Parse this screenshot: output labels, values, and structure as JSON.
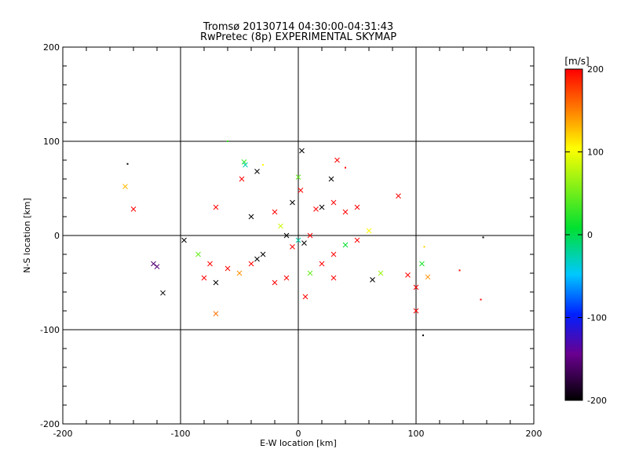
{
  "chart_data": {
    "type": "scatter",
    "title": "Tromsø 20130714 04:30:00-04:31:43",
    "subtitle": "RwPretec (8p) EXPERIMENTAL SKYMAP",
    "xlabel": "E-W location [km]",
    "ylabel": "N-S location [km]",
    "xlim": [
      -200,
      200
    ],
    "ylim": [
      -200,
      200
    ],
    "xticks": [
      "-200",
      "-100",
      "0",
      "100",
      "200"
    ],
    "yticks": [
      "-200",
      "-100",
      "0",
      "100",
      "200"
    ],
    "grid": true,
    "colorbar": {
      "label": "[m/s]",
      "range": [
        -200,
        200
      ],
      "ticks": [
        "200",
        "100",
        "0",
        "-100",
        "-200"
      ],
      "colors": [
        "#000000",
        "#6a0090",
        "#0020ff",
        "#00c8ff",
        "#00e030",
        "#ffff00",
        "#ff9000",
        "#ff0000"
      ],
      "placement": "right"
    },
    "series": [
      {
        "values": [
          {
            "x": 3,
            "y": 90,
            "v": -200,
            "s": "x"
          },
          {
            "x": -35,
            "y": 68,
            "v": -200,
            "s": "x"
          },
          {
            "x": 28,
            "y": 60,
            "v": -200,
            "s": "x"
          },
          {
            "x": -145,
            "y": 76,
            "v": -200,
            "s": "dot"
          },
          {
            "x": -147,
            "y": 52,
            "v": 130,
            "s": "x"
          },
          {
            "x": -140,
            "y": 28,
            "v": 200,
            "s": "x"
          },
          {
            "x": -60,
            "y": 100,
            "v": 20,
            "s": "dot"
          },
          {
            "x": -46,
            "y": 78,
            "v": 20,
            "s": "x"
          },
          {
            "x": -45,
            "y": 75,
            "v": -30,
            "s": "x"
          },
          {
            "x": -30,
            "y": 75,
            "v": 100,
            "s": "dot"
          },
          {
            "x": -48,
            "y": 60,
            "v": 200,
            "s": "x"
          },
          {
            "x": -70,
            "y": 30,
            "v": 200,
            "s": "x"
          },
          {
            "x": -97,
            "y": -5,
            "v": -200,
            "s": "x"
          },
          {
            "x": -85,
            "y": -20,
            "v": 40,
            "s": "x"
          },
          {
            "x": -123,
            "y": -30,
            "v": -160,
            "s": "x"
          },
          {
            "x": -120,
            "y": -33,
            "v": -160,
            "s": "x"
          },
          {
            "x": -115,
            "y": -61,
            "v": -200,
            "s": "x"
          },
          {
            "x": -70,
            "y": -50,
            "v": -200,
            "s": "x"
          },
          {
            "x": -70,
            "y": -83,
            "v": 160,
            "s": "x"
          },
          {
            "x": 6,
            "y": -65,
            "v": 200,
            "s": "x"
          },
          {
            "x": 33,
            "y": 80,
            "v": 200,
            "s": "x"
          },
          {
            "x": 40,
            "y": 72,
            "v": 200,
            "s": "dot"
          },
          {
            "x": 85,
            "y": 42,
            "v": 200,
            "s": "x"
          },
          {
            "x": 63,
            "y": -47,
            "v": -200,
            "s": "x"
          },
          {
            "x": 70,
            "y": -40,
            "v": 60,
            "s": "x"
          },
          {
            "x": 93,
            "y": -42,
            "v": 200,
            "s": "x"
          },
          {
            "x": 100,
            "y": -55,
            "v": 200,
            "s": "x"
          },
          {
            "x": 105,
            "y": -30,
            "v": 10,
            "s": "x"
          },
          {
            "x": 110,
            "y": -44,
            "v": 150,
            "s": "x"
          },
          {
            "x": 107,
            "y": -12,
            "v": 120,
            "s": "dot"
          },
          {
            "x": 100,
            "y": -80,
            "v": 200,
            "s": "x"
          },
          {
            "x": 106,
            "y": -106,
            "v": -200,
            "s": "dot"
          },
          {
            "x": 157,
            "y": -2,
            "v": -200,
            "s": "dot"
          },
          {
            "x": 137,
            "y": -37,
            "v": 200,
            "s": "dot"
          },
          {
            "x": 155,
            "y": -68,
            "v": 200,
            "s": "dot"
          },
          {
            "x": 0,
            "y": 62,
            "v": 40,
            "s": "x"
          },
          {
            "x": 2,
            "y": 48,
            "v": 200,
            "s": "x"
          },
          {
            "x": -5,
            "y": 35,
            "v": -200,
            "s": "x"
          },
          {
            "x": 15,
            "y": 28,
            "v": 200,
            "s": "x"
          },
          {
            "x": 20,
            "y": 30,
            "v": -200,
            "s": "x"
          },
          {
            "x": -20,
            "y": 25,
            "v": 200,
            "s": "x"
          },
          {
            "x": -40,
            "y": 20,
            "v": -200,
            "s": "x"
          },
          {
            "x": 40,
            "y": 25,
            "v": 200,
            "s": "x"
          },
          {
            "x": 50,
            "y": 30,
            "v": 200,
            "s": "x"
          },
          {
            "x": 30,
            "y": 35,
            "v": 200,
            "s": "x"
          },
          {
            "x": -15,
            "y": 10,
            "v": 80,
            "s": "x"
          },
          {
            "x": -10,
            "y": 0,
            "v": -200,
            "s": "x"
          },
          {
            "x": 0,
            "y": -5,
            "v": -30,
            "s": "x"
          },
          {
            "x": 5,
            "y": -8,
            "v": -200,
            "s": "x"
          },
          {
            "x": 10,
            "y": 0,
            "v": 200,
            "s": "x"
          },
          {
            "x": -5,
            "y": -12,
            "v": 200,
            "s": "x"
          },
          {
            "x": -30,
            "y": -20,
            "v": -200,
            "s": "x"
          },
          {
            "x": -35,
            "y": -25,
            "v": -200,
            "s": "x"
          },
          {
            "x": -40,
            "y": -30,
            "v": 200,
            "s": "x"
          },
          {
            "x": -50,
            "y": -40,
            "v": 150,
            "s": "x"
          },
          {
            "x": -60,
            "y": -35,
            "v": 200,
            "s": "x"
          },
          {
            "x": 20,
            "y": -30,
            "v": 200,
            "s": "x"
          },
          {
            "x": 30,
            "y": -20,
            "v": 200,
            "s": "x"
          },
          {
            "x": 40,
            "y": -10,
            "v": 0,
            "s": "x"
          },
          {
            "x": 50,
            "y": -5,
            "v": 200,
            "s": "x"
          },
          {
            "x": 60,
            "y": 5,
            "v": 100,
            "s": "x"
          },
          {
            "x": -20,
            "y": -50,
            "v": 200,
            "s": "x"
          },
          {
            "x": -10,
            "y": -45,
            "v": 200,
            "s": "x"
          },
          {
            "x": 10,
            "y": -40,
            "v": 40,
            "s": "x"
          },
          {
            "x": 30,
            "y": -45,
            "v": 200,
            "s": "x"
          },
          {
            "x": -80,
            "y": -45,
            "v": 200,
            "s": "x"
          },
          {
            "x": -75,
            "y": -30,
            "v": 200,
            "s": "x"
          }
        ]
      }
    ]
  }
}
